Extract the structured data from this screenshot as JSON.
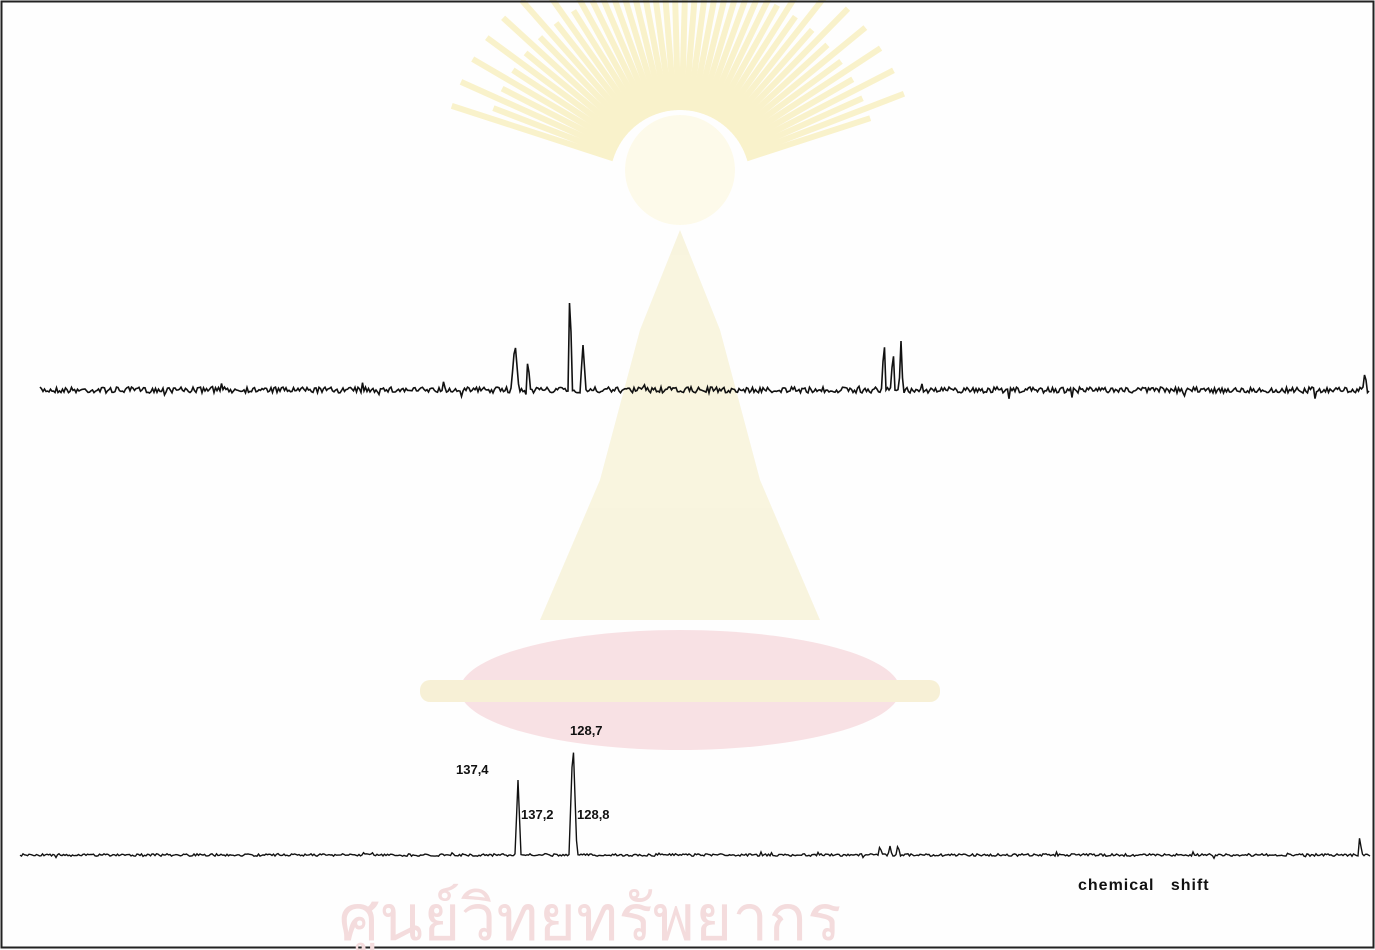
{
  "peak_labels": [
    "128,7",
    "137,4",
    "137,2",
    "128,8"
  ],
  "axis_label": "chemical   shift",
  "watermark": "ศูนย์วิทยทรัพยากร"
}
